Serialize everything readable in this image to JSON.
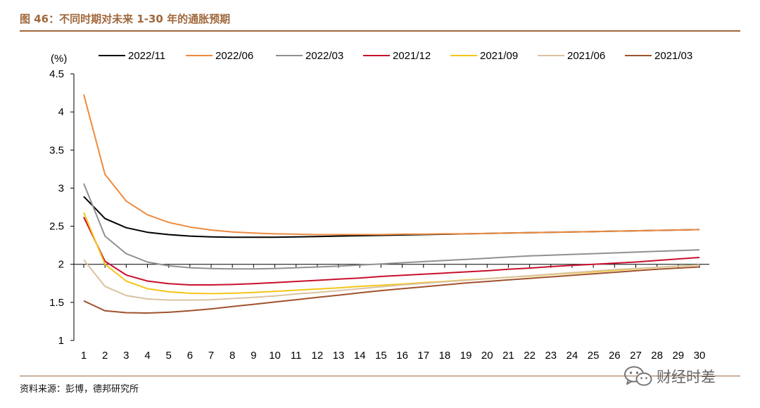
{
  "figure": {
    "title": "图 46：不同时期对未来 1-30 年的通胀预期",
    "source": "资料来源：彭博，德邦研究所",
    "watermark": "财经时差"
  },
  "chart_data": {
    "type": "line",
    "ylabel": "(%)",
    "xlabel": "",
    "ylim": [
      1,
      4.5
    ],
    "yticks": [
      1,
      1.5,
      2,
      2.5,
      3,
      3.5,
      4,
      4.5
    ],
    "ytick_labels": [
      "1",
      "1.5",
      "2",
      "2.5",
      "3",
      "3.5",
      "4",
      "4.5"
    ],
    "x": [
      1,
      2,
      3,
      4,
      5,
      6,
      7,
      8,
      9,
      10,
      11,
      12,
      13,
      14,
      15,
      16,
      17,
      18,
      19,
      20,
      21,
      22,
      23,
      24,
      25,
      26,
      27,
      28,
      29,
      30
    ],
    "x_axis_crosses_at": 2,
    "grid": false,
    "legend_position": "top",
    "series": [
      {
        "name": "2022/11",
        "color": "#000000",
        "values": [
          2.89,
          2.6,
          2.48,
          2.42,
          2.39,
          2.37,
          2.36,
          2.355,
          2.355,
          2.355,
          2.36,
          2.365,
          2.37,
          2.375,
          2.38,
          2.385,
          2.39,
          2.395,
          2.4,
          2.405,
          2.41,
          2.415,
          2.42,
          2.425,
          2.43,
          2.435,
          2.44,
          2.445,
          2.45,
          2.455
        ]
      },
      {
        "name": "2022/06",
        "color": "#ed8a3f",
        "values": [
          4.23,
          3.18,
          2.83,
          2.65,
          2.55,
          2.49,
          2.45,
          2.425,
          2.41,
          2.4,
          2.395,
          2.39,
          2.39,
          2.39,
          2.39,
          2.395,
          2.395,
          2.4,
          2.4,
          2.405,
          2.41,
          2.415,
          2.42,
          2.425,
          2.43,
          2.435,
          2.44,
          2.445,
          2.45,
          2.455
        ]
      },
      {
        "name": "2022/03",
        "color": "#909090",
        "values": [
          3.06,
          2.37,
          2.14,
          2.03,
          1.98,
          1.955,
          1.945,
          1.94,
          1.94,
          1.945,
          1.955,
          1.965,
          1.975,
          1.99,
          2.005,
          2.02,
          2.035,
          2.05,
          2.065,
          2.08,
          2.095,
          2.11,
          2.12,
          2.13,
          2.14,
          2.15,
          2.16,
          2.17,
          2.18,
          2.19
        ]
      },
      {
        "name": "2021/12",
        "color": "#c8102e",
        "values": [
          2.62,
          2.04,
          1.86,
          1.78,
          1.745,
          1.73,
          1.73,
          1.735,
          1.745,
          1.76,
          1.775,
          1.79,
          1.805,
          1.82,
          1.84,
          1.855,
          1.87,
          1.885,
          1.9,
          1.915,
          1.935,
          1.95,
          1.97,
          1.985,
          2.0,
          2.015,
          2.03,
          2.05,
          2.07,
          2.09
        ]
      },
      {
        "name": "2021/09",
        "color": "#f5c518",
        "values": [
          2.68,
          2.0,
          1.78,
          1.68,
          1.64,
          1.62,
          1.615,
          1.62,
          1.63,
          1.645,
          1.66,
          1.675,
          1.69,
          1.71,
          1.725,
          1.74,
          1.76,
          1.775,
          1.795,
          1.81,
          1.83,
          1.845,
          1.865,
          1.885,
          1.9,
          1.92,
          1.94,
          1.96,
          1.975,
          1.99
        ]
      },
      {
        "name": "2021/06",
        "color": "#d9c3a0",
        "values": [
          2.06,
          1.71,
          1.59,
          1.545,
          1.53,
          1.53,
          1.535,
          1.55,
          1.565,
          1.585,
          1.61,
          1.63,
          1.655,
          1.68,
          1.705,
          1.73,
          1.75,
          1.77,
          1.79,
          1.81,
          1.83,
          1.85,
          1.87,
          1.89,
          1.91,
          1.93,
          1.945,
          1.96,
          1.975,
          1.99
        ]
      },
      {
        "name": "2021/03",
        "color": "#a0522d",
        "values": [
          1.52,
          1.39,
          1.365,
          1.36,
          1.37,
          1.39,
          1.415,
          1.445,
          1.475,
          1.505,
          1.535,
          1.565,
          1.595,
          1.625,
          1.655,
          1.68,
          1.705,
          1.73,
          1.755,
          1.775,
          1.795,
          1.815,
          1.835,
          1.855,
          1.875,
          1.895,
          1.915,
          1.935,
          1.95,
          1.965
        ]
      }
    ]
  }
}
